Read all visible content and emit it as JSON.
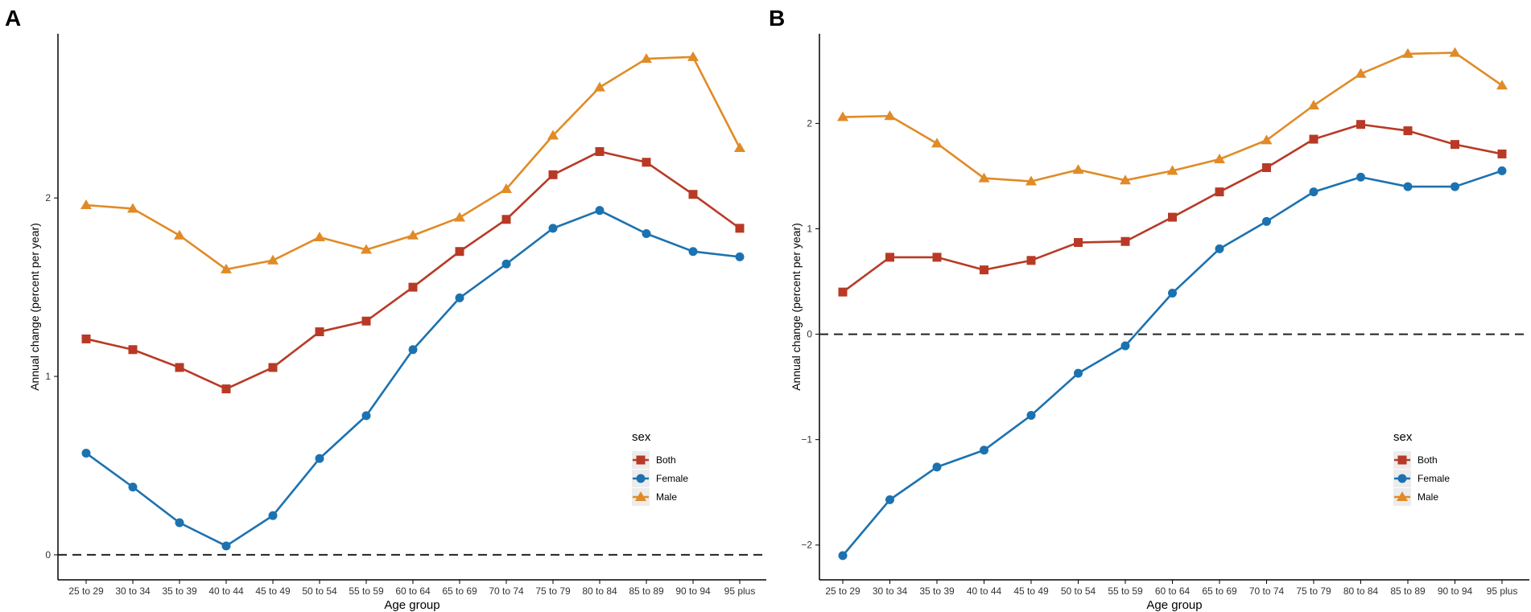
{
  "chart_data": [
    {
      "panel": "A",
      "type": "line",
      "xlabel": "Age group",
      "ylabel": "Annual change (percent per year)",
      "categories": [
        "25 to 29",
        "30 to 34",
        "35 to 39",
        "40 to 44",
        "45 to 49",
        "50 to 54",
        "55 to 59",
        "60 to 64",
        "65 to 69",
        "70 to 74",
        "75 to 79",
        "80 to 84",
        "85 to 89",
        "90 to 94",
        "95 plus"
      ],
      "yticks": [
        0,
        1,
        2
      ],
      "ylim": [
        -0.14,
        2.92
      ],
      "reference_line": 0,
      "legend": {
        "title": "sex",
        "position": "right"
      },
      "series": [
        {
          "name": "Both",
          "color": "#b83a26",
          "marker": "square",
          "values": [
            1.21,
            1.15,
            1.05,
            0.93,
            1.05,
            1.25,
            1.31,
            1.5,
            1.7,
            1.88,
            2.13,
            2.26,
            2.2,
            2.02,
            1.83
          ]
        },
        {
          "name": "Female",
          "color": "#1c72b0",
          "marker": "circle",
          "values": [
            0.57,
            0.38,
            0.18,
            0.05,
            0.22,
            0.54,
            0.78,
            1.15,
            1.44,
            1.63,
            1.83,
            1.93,
            1.8,
            1.7,
            1.67
          ]
        },
        {
          "name": "Male",
          "color": "#e08b27",
          "marker": "triangle",
          "values": [
            1.96,
            1.94,
            1.79,
            1.6,
            1.65,
            1.78,
            1.71,
            1.79,
            1.89,
            2.05,
            2.35,
            2.62,
            2.78,
            2.79,
            2.28
          ]
        }
      ]
    },
    {
      "panel": "B",
      "type": "line",
      "xlabel": "Age group",
      "ylabel": "Annual change (percent per year)",
      "categories": [
        "25 to 29",
        "30 to 34",
        "35 to 39",
        "40 to 44",
        "45 to 49",
        "50 to 54",
        "55 to 59",
        "60 to 64",
        "65 to 69",
        "70 to 74",
        "75 to 79",
        "80 to 84",
        "85 to 89",
        "90 to 94",
        "95 plus"
      ],
      "yticks": [
        -2,
        -1,
        0,
        1,
        2
      ],
      "ytick_labels": [
        "−2",
        "−1",
        "0",
        "1",
        "2"
      ],
      "ylim": [
        -2.33,
        2.85
      ],
      "reference_line": 0,
      "legend": {
        "title": "sex",
        "position": "right"
      },
      "series": [
        {
          "name": "Both",
          "color": "#b83a26",
          "marker": "square",
          "values": [
            0.4,
            0.73,
            0.73,
            0.61,
            0.7,
            0.87,
            0.88,
            1.11,
            1.35,
            1.58,
            1.85,
            1.99,
            1.93,
            1.8,
            1.71
          ]
        },
        {
          "name": "Female",
          "color": "#1c72b0",
          "marker": "circle",
          "values": [
            -2.1,
            -1.57,
            -1.26,
            -1.1,
            -0.77,
            -0.37,
            -0.11,
            0.39,
            0.81,
            1.07,
            1.35,
            1.49,
            1.4,
            1.4,
            1.55
          ]
        },
        {
          "name": "Male",
          "color": "#e08b27",
          "marker": "triangle",
          "values": [
            2.06,
            2.07,
            1.81,
            1.48,
            1.45,
            1.56,
            1.46,
            1.55,
            1.66,
            1.84,
            2.17,
            2.47,
            2.66,
            2.67,
            2.36
          ]
        }
      ]
    }
  ]
}
